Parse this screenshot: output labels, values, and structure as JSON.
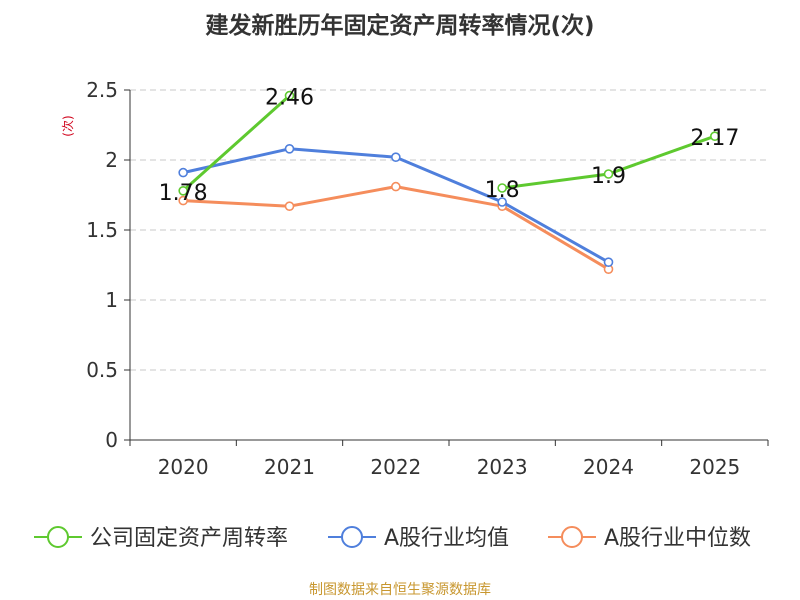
{
  "chart_data": {
    "type": "line",
    "title": "建发新胜历年固定资产周转率情况(次)",
    "ylabel": "(次)",
    "xlabel": "",
    "ylim": [
      0,
      2.5
    ],
    "yticks": [
      "0",
      "0.5",
      "1",
      "1.5",
      "2",
      "2.5"
    ],
    "categories": [
      "2020",
      "2021",
      "2022",
      "2023",
      "2024",
      "2025"
    ],
    "grid": "horizontal dashed",
    "legend_position": "bottom",
    "series": [
      {
        "name": "公司固定资产周转率",
        "color": "#5ec92f",
        "show_labels": true,
        "values": [
          1.78,
          2.46,
          null,
          1.8,
          1.9,
          2.17
        ],
        "labels": [
          "1.78",
          "2.46",
          "",
          "1.8",
          "1.9",
          "2.17"
        ]
      },
      {
        "name": "A股行业均值",
        "color": "#4f7fdc",
        "show_labels": false,
        "values": [
          1.91,
          2.08,
          2.02,
          1.7,
          1.27,
          null
        ]
      },
      {
        "name": "A股行业中位数",
        "color": "#f58d5c",
        "show_labels": false,
        "values": [
          1.71,
          1.67,
          1.81,
          1.67,
          1.22,
          null
        ]
      }
    ]
  },
  "source": "制图数据来自恒生聚源数据库"
}
